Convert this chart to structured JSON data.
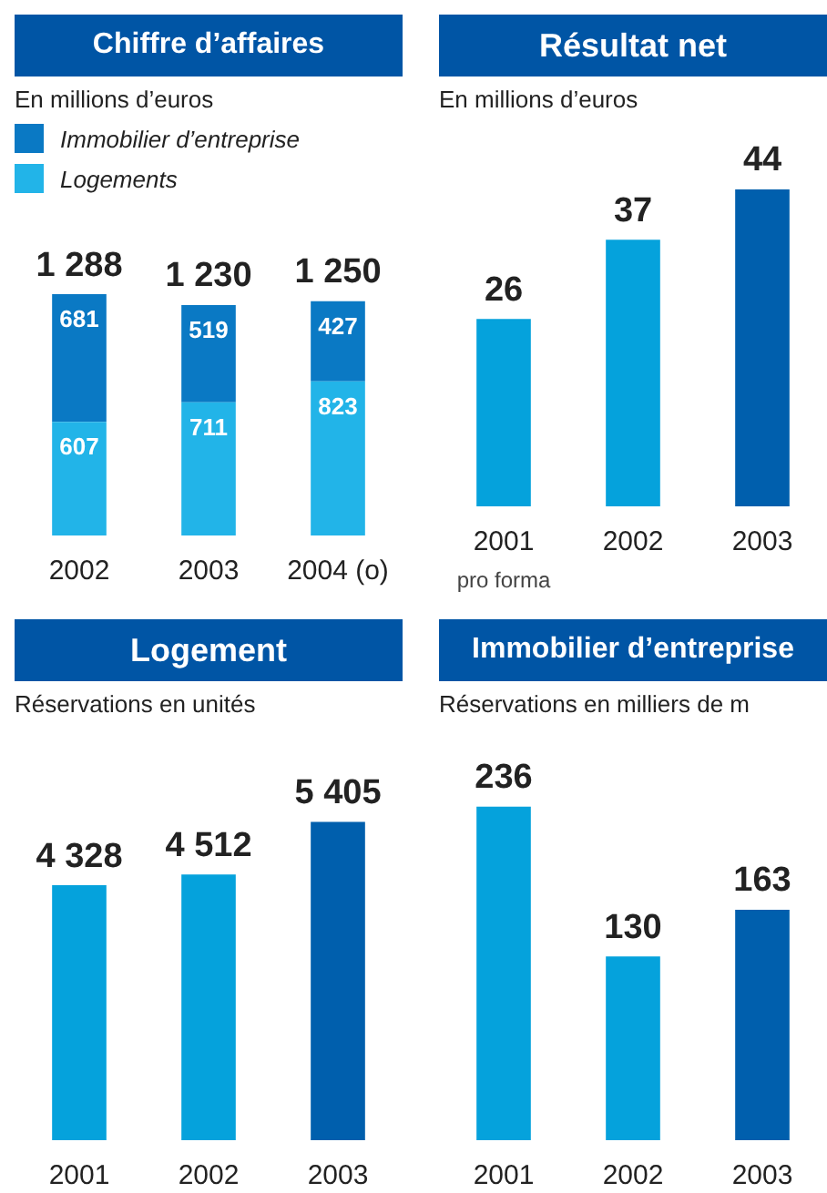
{
  "chart_data": [
    {
      "type": "bar",
      "title": "Chiffre d’affaires",
      "subtitle": "En millions d’euros",
      "categories": [
        "2002",
        "2003",
        "2004 (o)"
      ],
      "stacked": true,
      "legend": "top left",
      "data_labels": true,
      "totals": [
        "1 288",
        "1 230",
        "1 250"
      ],
      "series": [
        {
          "name": "Logements",
          "color": "#22b4e8",
          "values": [
            607,
            711,
            823
          ]
        },
        {
          "name": "Immobilier d’entreprise",
          "color": "#0a79c4",
          "values": [
            681,
            519,
            427
          ]
        }
      ]
    },
    {
      "type": "bar",
      "title": "Résultat net",
      "subtitle": "En millions d’euros",
      "categories": [
        "2001",
        "2002",
        "2003"
      ],
      "values": [
        26,
        37,
        44
      ],
      "colors": [
        "#05a2dc",
        "#05a2dc",
        "#005fad"
      ],
      "data_labels": true,
      "annotations": [
        "pro forma"
      ]
    },
    {
      "type": "bar",
      "title": "Logement",
      "subtitle": "Réservations en unités",
      "categories": [
        "2001",
        "2002",
        "2003"
      ],
      "values": [
        4328,
        4512,
        5405
      ],
      "value_labels": [
        "4 328",
        "4 512",
        "5 405"
      ],
      "colors": [
        "#05a2dc",
        "#05a2dc",
        "#005fad"
      ]
    },
    {
      "type": "bar",
      "title": "Immobilier d’entreprise",
      "subtitle": "Réservations en milliers de m",
      "categories": [
        "2001",
        "2002",
        "2003"
      ],
      "values": [
        236,
        130,
        163
      ],
      "colors": [
        "#05a2dc",
        "#05a2dc",
        "#005fad"
      ],
      "data_labels": true
    }
  ]
}
